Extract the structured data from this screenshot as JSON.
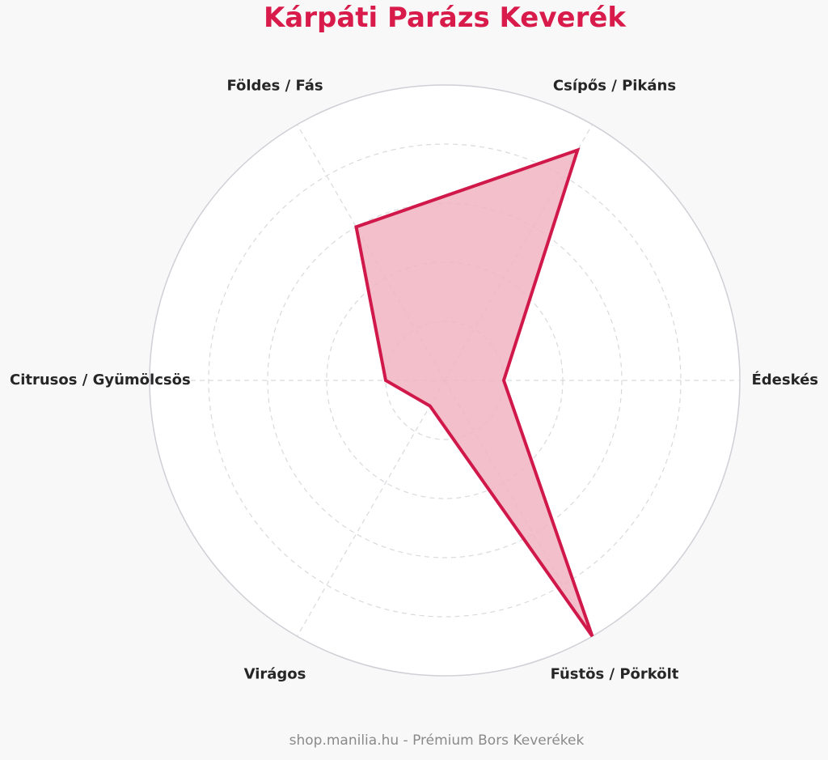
{
  "chart_data": {
    "type": "radar",
    "title": "Kárpáti Parázs Keverék",
    "axes": [
      "Édeskés",
      "Csípős / Pikáns",
      "Földes / Fás",
      "Citrusos / Gyümölcsös",
      "Virágos",
      "Füstös / Pörkölt"
    ],
    "series": [
      {
        "values": [
          2,
          9,
          6,
          2,
          1,
          10
        ]
      }
    ],
    "range": [
      0,
      10
    ],
    "rings": [
      2,
      4,
      6,
      8,
      10
    ],
    "grid": true,
    "colors": {
      "line": "#d0184a",
      "fill": "#f0b4c2",
      "title": "#d81b4a"
    }
  },
  "footer": "shop.manilia.hu - Prémium Bors Keverékek"
}
